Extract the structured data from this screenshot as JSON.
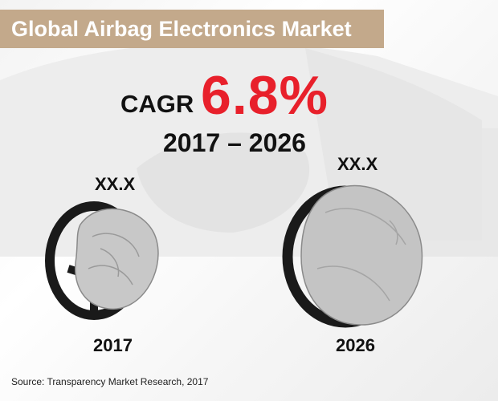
{
  "title": "Global Airbag Electronics Market",
  "cagr": {
    "label": "CAGR",
    "value": "6.8%",
    "period": "2017 – 2026"
  },
  "chart_data": {
    "type": "bar",
    "title": "Global Airbag Electronics Market",
    "categories": [
      "2017",
      "2026"
    ],
    "value_labels": [
      "XX.X",
      "XX.X"
    ],
    "values": [
      null,
      null
    ],
    "annotation": "CAGR 6.8% 2017 – 2026"
  },
  "source": "Source: Transparency Market Research, 2017",
  "colors": {
    "title_bar": "#c3a98b",
    "cagr_value": "#e8202b",
    "text": "#111111"
  }
}
